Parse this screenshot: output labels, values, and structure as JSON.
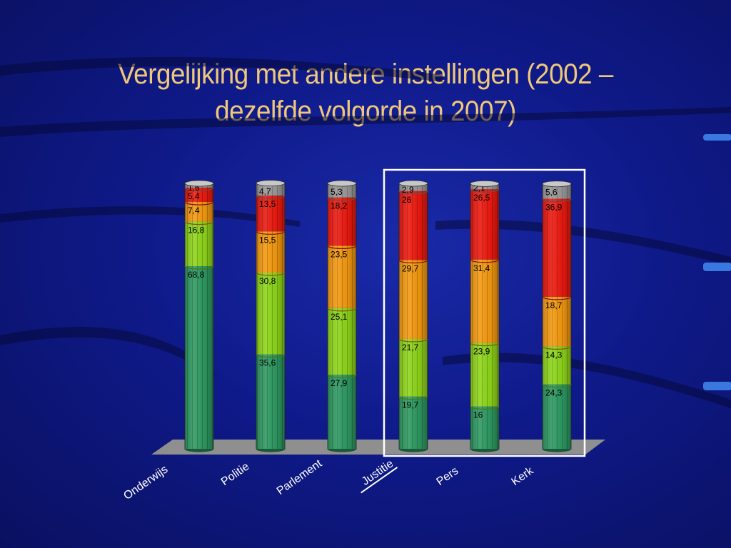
{
  "title": {
    "line1": "Vergelijking met andere instellingen (2002 –",
    "line2": "dezelfde volgorde in 2007)"
  },
  "colors": {
    "background": "#10198a",
    "title": "#f0c878",
    "segment_colors": [
      "#2e9a62",
      "#8fd61a",
      "#f59a10",
      "#ee1a10",
      "#9a9a9a"
    ],
    "floor": "#8f8f8f",
    "highlight_frame": "#ffffff"
  },
  "chart_data": {
    "type": "bar",
    "stacked": true,
    "categories": [
      "Onderwijs",
      "Politie",
      "Parlement",
      "Justitie",
      "Pers",
      "Kerk"
    ],
    "series": [
      {
        "values": [
          68.8,
          35.6,
          27.9,
          19.7,
          16.0,
          24.3
        ]
      },
      {
        "values": [
          16.8,
          30.8,
          25.1,
          21.7,
          23.9,
          14.3
        ]
      },
      {
        "values": [
          7.4,
          15.5,
          23.5,
          29.7,
          31.4,
          18.7
        ]
      },
      {
        "values": [
          5.4,
          13.5,
          18.2,
          26.0,
          26.5,
          36.9
        ]
      },
      {
        "values": [
          1.6,
          4.7,
          5.3,
          2.9,
          2.1,
          5.6
        ]
      }
    ],
    "value_labels": [
      [
        "68,8",
        "16,8",
        "7,4",
        "5,4",
        "1,6"
      ],
      [
        "35,6",
        "30,8",
        "15,5",
        "13,5",
        "4,7"
      ],
      [
        "27,9",
        "25,1",
        "23,5",
        "18,2",
        "5,3"
      ],
      [
        "19,7",
        "21,7",
        "29,7",
        "26",
        "2,9"
      ],
      [
        "16",
        "23,9",
        "31,4",
        "26,5",
        "2,1"
      ],
      [
        "24,3",
        "14,3",
        "18,7",
        "36,9",
        "5,6"
      ]
    ],
    "ylim": [
      0,
      100
    ],
    "highlighted_categories": [
      "Justitie",
      "Pers",
      "Kerk"
    ],
    "underlined_category": "Justitie"
  }
}
